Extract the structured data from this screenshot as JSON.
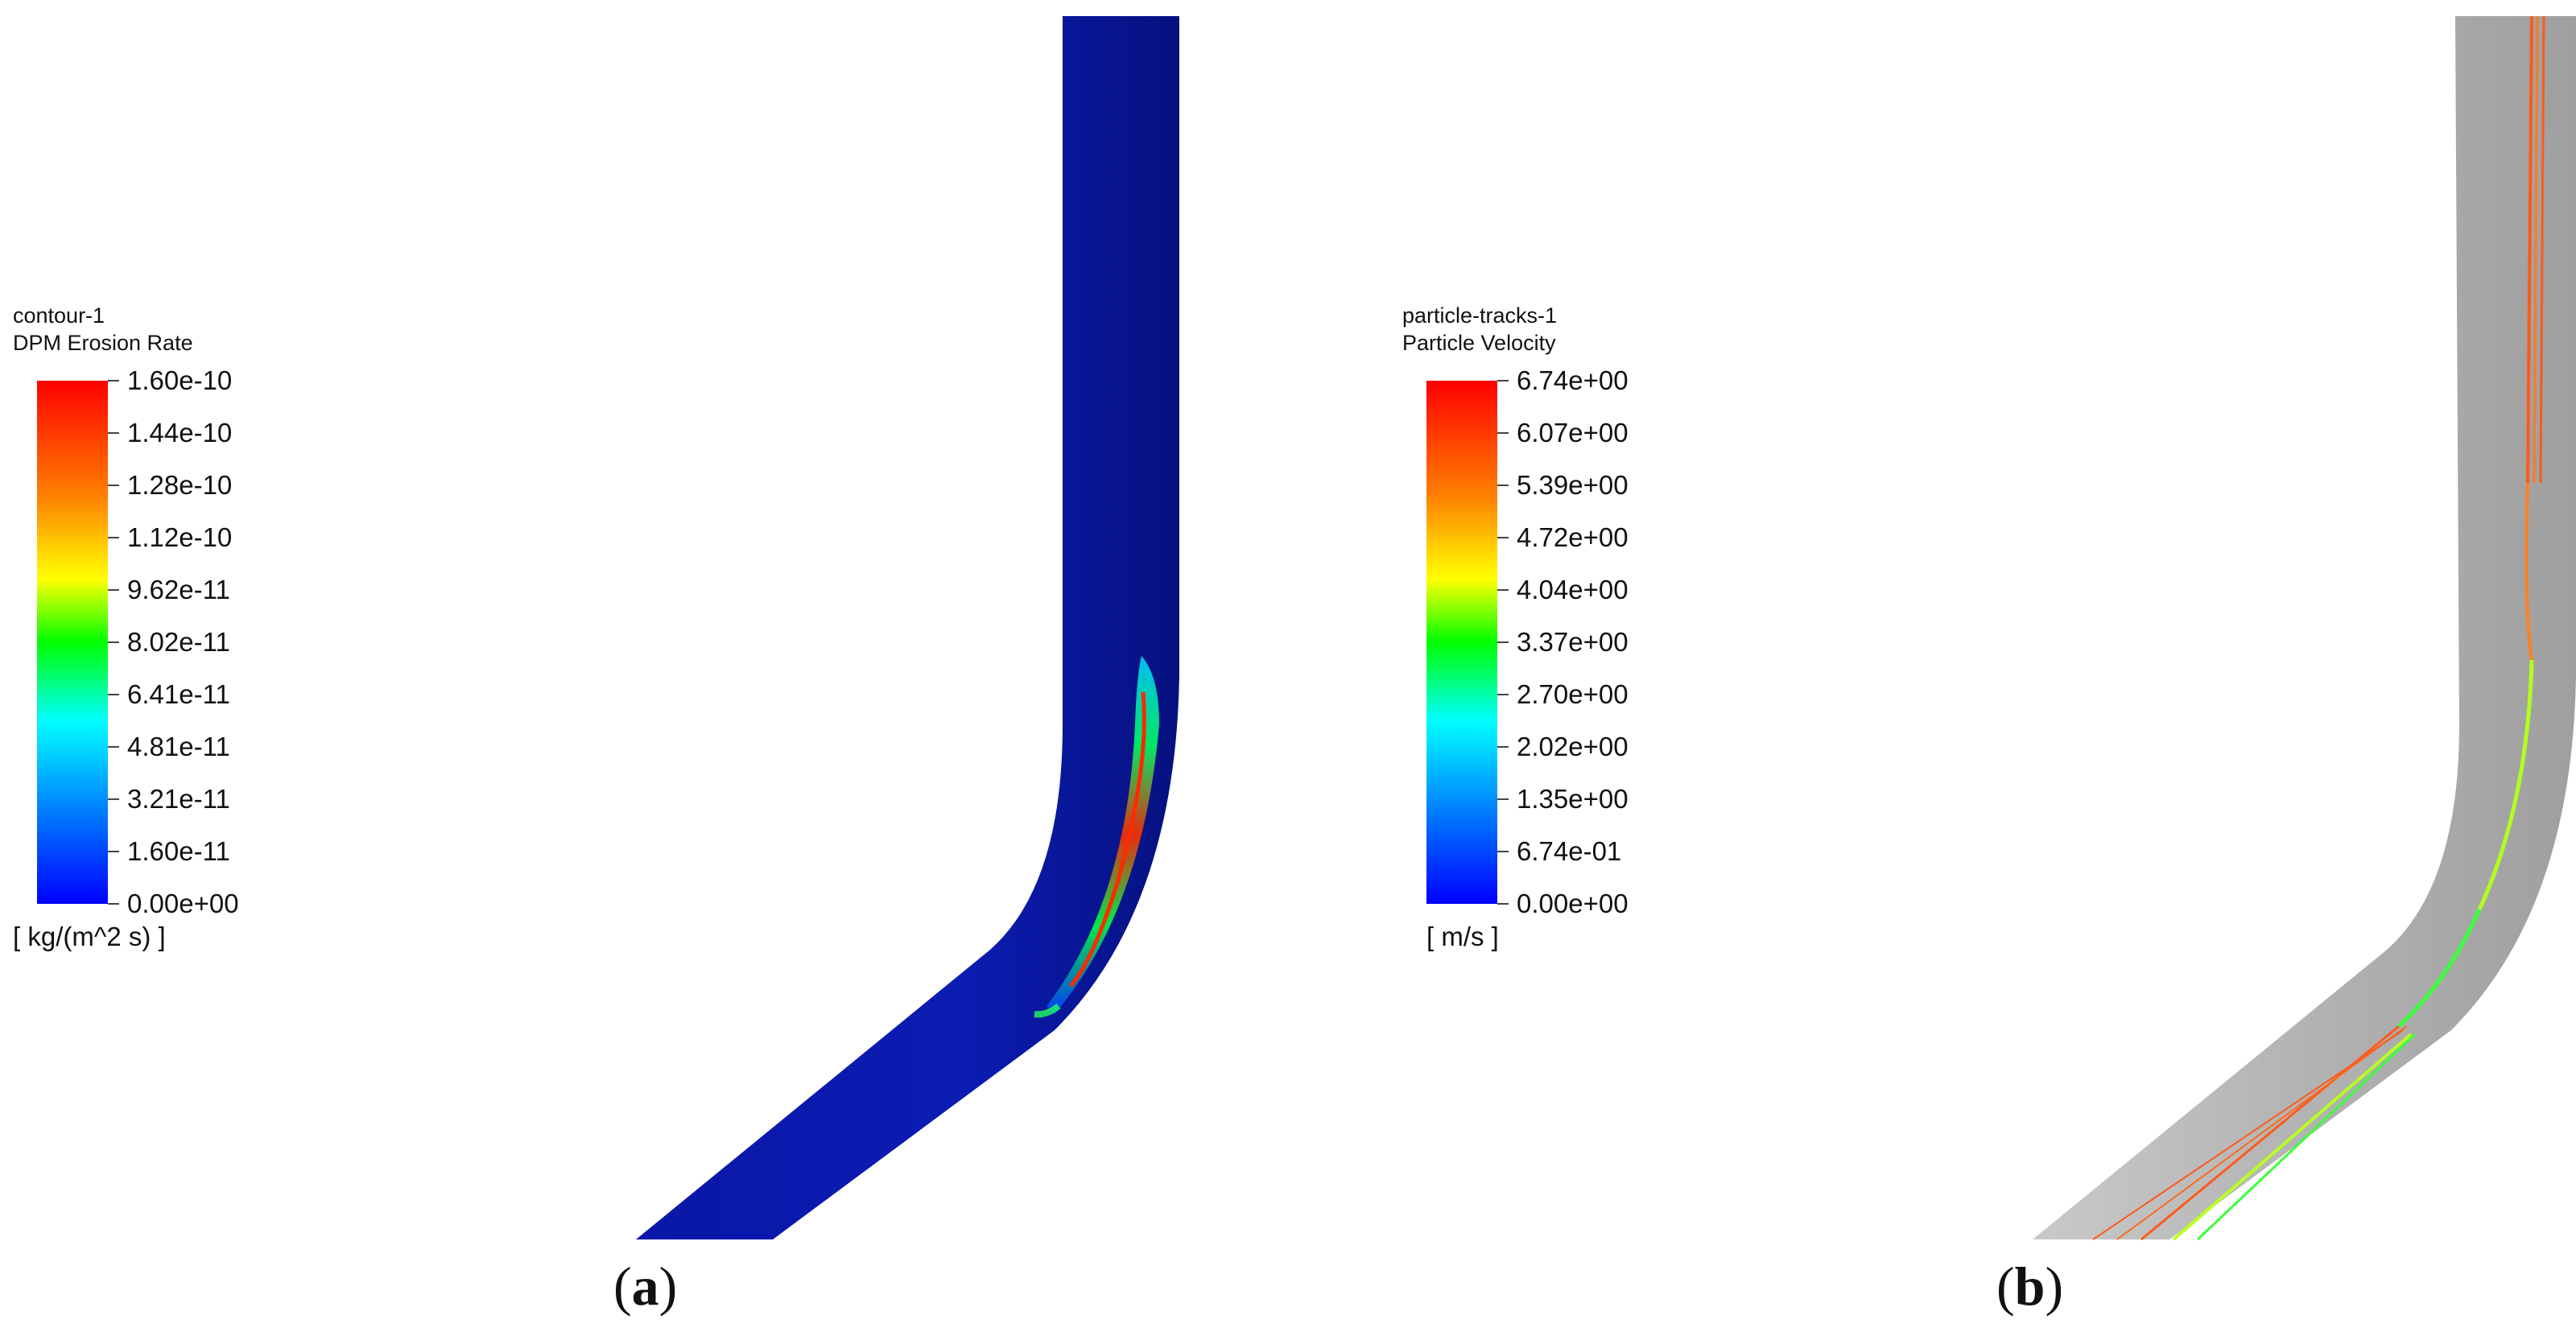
{
  "panels": [
    {
      "caption_open": "(",
      "caption_letter": "a",
      "caption_close": ")",
      "legend": {
        "title": "contour-1",
        "subtitle": "DPM Erosion Rate",
        "unit": "[ kg/(m^2 s) ]",
        "ticks": [
          "1.60e-10",
          "1.44e-10",
          "1.28e-10",
          "1.12e-10",
          "9.62e-11",
          "8.02e-11",
          "6.41e-11",
          "4.81e-11",
          "3.21e-11",
          "1.60e-11",
          "0.00e+00"
        ]
      },
      "colors": {
        "pipe": "#0a17a8",
        "pipe_dark": "#050f80",
        "hotspot": "#ff2a00"
      }
    },
    {
      "caption_open": "(",
      "caption_letter": "b",
      "caption_close": ")",
      "legend": {
        "title": "particle-tracks-1",
        "subtitle": "Particle Velocity",
        "unit": "[ m/s ]",
        "ticks": [
          "6.74e+00",
          "6.07e+00",
          "5.39e+00",
          "4.72e+00",
          "4.04e+00",
          "3.37e+00",
          "2.70e+00",
          "2.02e+00",
          "1.35e+00",
          "6.74e-01",
          "0.00e+00"
        ]
      },
      "colors": {
        "pipe": "#bdbdbd",
        "track_fast": "#ff5a1a",
        "track_slow": "#3cff3c"
      }
    }
  ]
}
